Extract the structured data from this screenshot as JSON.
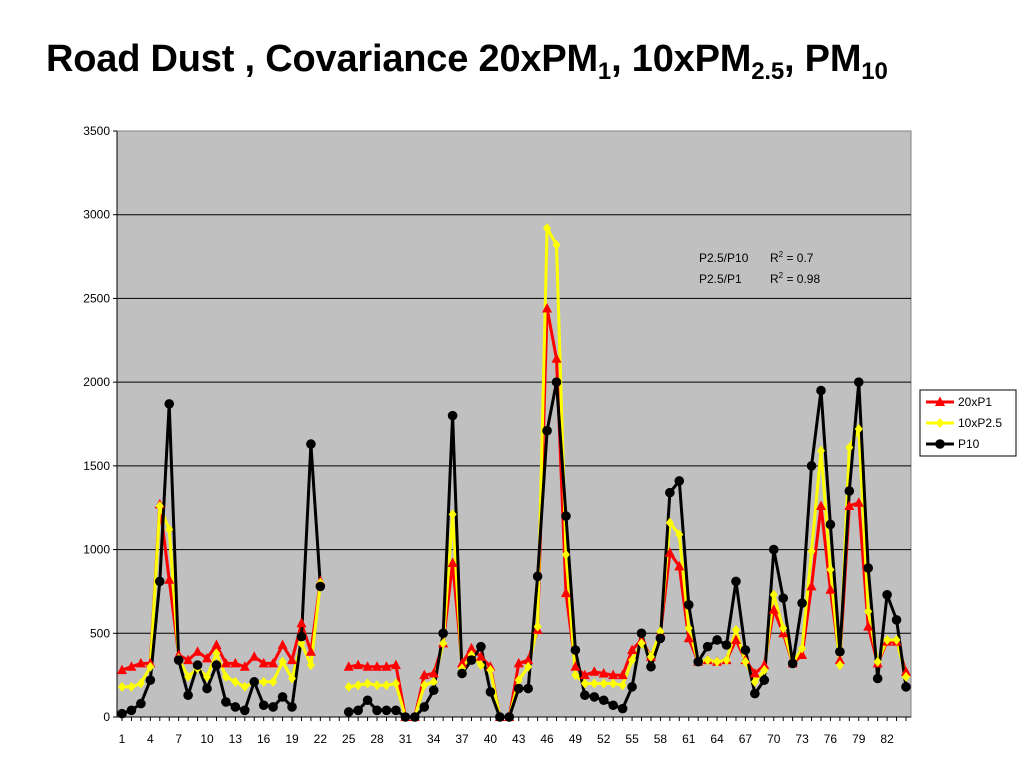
{
  "title": {
    "main": "Road Dust , Covariance 20xPM",
    "sub1": "1",
    "mid": ", 10xPM",
    "sub2": "2.5",
    "sep": ",  PM",
    "sub3": "10"
  },
  "annotations": [
    {
      "label": "P2.5/P10",
      "r": "R",
      "sup": "2",
      "value": " = 0.7"
    },
    {
      "label": "P2.5/P1",
      "r": "R",
      "sup": "2",
      "value": " = 0.98"
    }
  ],
  "chart_data": {
    "type": "line",
    "title": "",
    "xlabel": "",
    "ylabel": "",
    "xlim": [
      1,
      84
    ],
    "ylim": [
      0,
      3500
    ],
    "y_ticks": [
      0,
      500,
      1000,
      1500,
      2000,
      2500,
      3000,
      3500
    ],
    "x_tick_labels": [
      "1",
      "4",
      "7",
      "10",
      "13",
      "16",
      "19",
      "22",
      "25",
      "28",
      "31",
      "34",
      "37",
      "40",
      "43",
      "46",
      "49",
      "52",
      "55",
      "58",
      "61",
      "64",
      "67",
      "70",
      "73",
      "76",
      "79",
      "82"
    ],
    "grid": "horizontal",
    "plot_background": "#C0C0C0",
    "legend": "right",
    "series": [
      {
        "name": "20xP1",
        "color": "#FF0000",
        "marker": "triangle",
        "values": [
          280,
          300,
          320,
          320,
          1270,
          820,
          370,
          340,
          390,
          350,
          430,
          320,
          320,
          300,
          360,
          320,
          320,
          430,
          340,
          560,
          390,
          810,
          null,
          null,
          300,
          310,
          300,
          300,
          300,
          310,
          0,
          0,
          250,
          260,
          440,
          920,
          320,
          410,
          360,
          300,
          0,
          0,
          320,
          340,
          520,
          2440,
          2140,
          740,
          300,
          250,
          270,
          260,
          250,
          250,
          400,
          460,
          360,
          500,
          980,
          900,
          470,
          330,
          340,
          330,
          340,
          460,
          340,
          260,
          310,
          640,
          500,
          320,
          370,
          780,
          1260,
          760,
          340,
          1260,
          1280,
          540,
          320,
          450,
          450,
          270
        ]
      },
      {
        "name": "10xP2.5",
        "color": "#FFFF00",
        "marker": "diamond",
        "values": [
          180,
          180,
          200,
          300,
          1260,
          1120,
          350,
          240,
          290,
          240,
          380,
          240,
          210,
          180,
          210,
          210,
          210,
          330,
          230,
          440,
          310,
          800,
          null,
          null,
          180,
          190,
          200,
          190,
          190,
          200,
          0,
          0,
          190,
          210,
          440,
          1210,
          290,
          370,
          310,
          280,
          0,
          0,
          220,
          300,
          540,
          2920,
          2820,
          970,
          250,
          200,
          200,
          200,
          200,
          190,
          340,
          440,
          360,
          510,
          1160,
          1090,
          530,
          330,
          340,
          330,
          340,
          520,
          330,
          210,
          280,
          730,
          530,
          320,
          410,
          990,
          1590,
          880,
          310,
          1610,
          1720,
          630,
          330,
          460,
          460,
          240
        ]
      },
      {
        "name": "P10",
        "color": "#000000",
        "marker": "circle",
        "values": [
          20,
          40,
          80,
          220,
          810,
          1870,
          340,
          130,
          310,
          170,
          310,
          90,
          60,
          40,
          210,
          70,
          60,
          120,
          60,
          480,
          1630,
          780,
          null,
          null,
          30,
          40,
          100,
          40,
          40,
          40,
          0,
          0,
          60,
          160,
          500,
          1800,
          260,
          340,
          420,
          150,
          0,
          0,
          170,
          170,
          840,
          1710,
          2000,
          1200,
          400,
          130,
          120,
          100,
          70,
          50,
          180,
          500,
          300,
          470,
          1340,
          1410,
          670,
          330,
          420,
          460,
          430,
          810,
          400,
          140,
          220,
          1000,
          710,
          320,
          680,
          1500,
          1950,
          1150,
          390,
          1350,
          2000,
          890,
          230,
          730,
          580,
          180
        ]
      }
    ]
  }
}
